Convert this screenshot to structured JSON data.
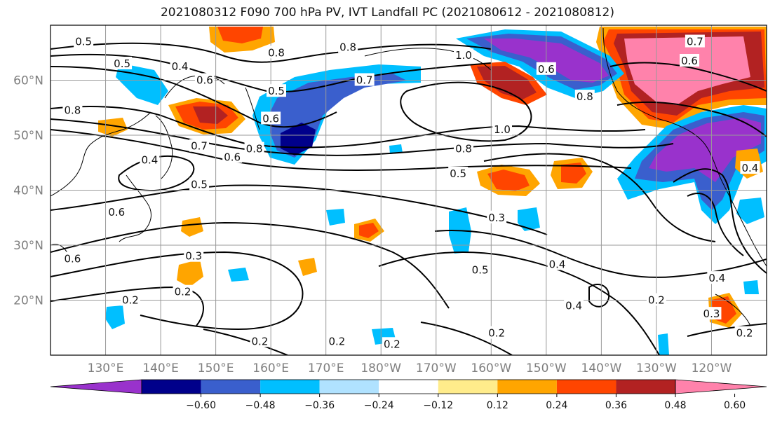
{
  "title": "2021080312 F090 700 hPa PV, IVT Landfall PC (2021080612 - 2021080812)",
  "map": {
    "lon_range": [
      120,
      250
    ],
    "lat_range": [
      10,
      70
    ],
    "lat_ticks": [
      {
        "lat": 20,
        "label": "20°N"
      },
      {
        "lat": 30,
        "label": "30°N"
      },
      {
        "lat": 40,
        "label": "40°N"
      },
      {
        "lat": 50,
        "label": "50°N"
      },
      {
        "lat": 60,
        "label": "60°N"
      }
    ],
    "lon_ticks": [
      {
        "lon": 130,
        "label": "130°E"
      },
      {
        "lon": 140,
        "label": "140°E"
      },
      {
        "lon": 150,
        "label": "150°E"
      },
      {
        "lon": 160,
        "label": "160°E"
      },
      {
        "lon": 170,
        "label": "170°E"
      },
      {
        "lon": 180,
        "label": "180°W"
      },
      {
        "lon": 190,
        "label": "170°W"
      },
      {
        "lon": 200,
        "label": "160°W"
      },
      {
        "lon": 210,
        "label": "150°W"
      },
      {
        "lon": 220,
        "label": "140°W"
      },
      {
        "lon": 230,
        "label": "130°W"
      },
      {
        "lon": 240,
        "label": "120°W"
      }
    ],
    "contour_labels": [
      {
        "lon": 126,
        "lat": 67,
        "text": "0.5"
      },
      {
        "lon": 133,
        "lat": 63,
        "text": "0.5"
      },
      {
        "lon": 143.5,
        "lat": 62.5,
        "text": "0.4"
      },
      {
        "lon": 148,
        "lat": 60,
        "text": "0.6"
      },
      {
        "lon": 161,
        "lat": 65,
        "text": "0.8"
      },
      {
        "lon": 174,
        "lat": 66,
        "text": "0.8"
      },
      {
        "lon": 177,
        "lat": 60,
        "text": "0.7"
      },
      {
        "lon": 124,
        "lat": 54.5,
        "text": "0.8"
      },
      {
        "lon": 161,
        "lat": 58,
        "text": "0.5"
      },
      {
        "lon": 160,
        "lat": 53,
        "text": "0.6"
      },
      {
        "lon": 147,
        "lat": 48,
        "text": "0.7"
      },
      {
        "lon": 153,
        "lat": 46,
        "text": "0.6"
      },
      {
        "lon": 157,
        "lat": 47.5,
        "text": "0.8"
      },
      {
        "lon": 138,
        "lat": 45.5,
        "text": "0.4"
      },
      {
        "lon": 147,
        "lat": 41,
        "text": "0.5"
      },
      {
        "lon": 132,
        "lat": 36,
        "text": "0.6"
      },
      {
        "lon": 124,
        "lat": 27.5,
        "text": "0.6"
      },
      {
        "lon": 134.5,
        "lat": 20,
        "text": "0.2"
      },
      {
        "lon": 144,
        "lat": 21.5,
        "text": "0.2"
      },
      {
        "lon": 146,
        "lat": 28,
        "text": "0.3"
      },
      {
        "lon": 158,
        "lat": 12.5,
        "text": "0.2"
      },
      {
        "lon": 172,
        "lat": 12.5,
        "text": "0.2"
      },
      {
        "lon": 182,
        "lat": 12,
        "text": "0.2"
      },
      {
        "lon": 195,
        "lat": 64.5,
        "text": "1.0"
      },
      {
        "lon": 202,
        "lat": 51,
        "text": "1.0"
      },
      {
        "lon": 195,
        "lat": 47.5,
        "text": "0.8"
      },
      {
        "lon": 194,
        "lat": 43,
        "text": "0.5"
      },
      {
        "lon": 201,
        "lat": 35,
        "text": "0.3"
      },
      {
        "lon": 198,
        "lat": 25.5,
        "text": "0.5"
      },
      {
        "lon": 212,
        "lat": 26.5,
        "text": "0.4"
      },
      {
        "lon": 215,
        "lat": 19,
        "text": "0.4"
      },
      {
        "lon": 201,
        "lat": 14,
        "text": "0.2"
      },
      {
        "lon": 210,
        "lat": 62,
        "text": "0.6"
      },
      {
        "lon": 217,
        "lat": 57,
        "text": "0.8"
      },
      {
        "lon": 236,
        "lat": 63.5,
        "text": "0.6"
      },
      {
        "lon": 237,
        "lat": 67,
        "text": "0.7"
      },
      {
        "lon": 230,
        "lat": 20,
        "text": "0.2"
      },
      {
        "lon": 240,
        "lat": 17.5,
        "text": "0.3"
      },
      {
        "lon": 246,
        "lat": 14,
        "text": "0.2"
      },
      {
        "lon": 241,
        "lat": 24,
        "text": "0.4"
      },
      {
        "lon": 247,
        "lat": 44,
        "text": "0.4"
      }
    ]
  },
  "colorbar": {
    "colors": [
      "#9932cc",
      "#00008b",
      "#3a5fcd",
      "#00bfff",
      "#b0e2ff",
      "#ffffff",
      "#ffec8b",
      "#ffa500",
      "#ff4500",
      "#b22222",
      "#ff82ab"
    ],
    "tick_labels": [
      "−0.60",
      "−0.48",
      "−0.36",
      "−0.24",
      "−0.12",
      "0.12",
      "0.24",
      "0.36",
      "0.48",
      "0.60"
    ]
  }
}
